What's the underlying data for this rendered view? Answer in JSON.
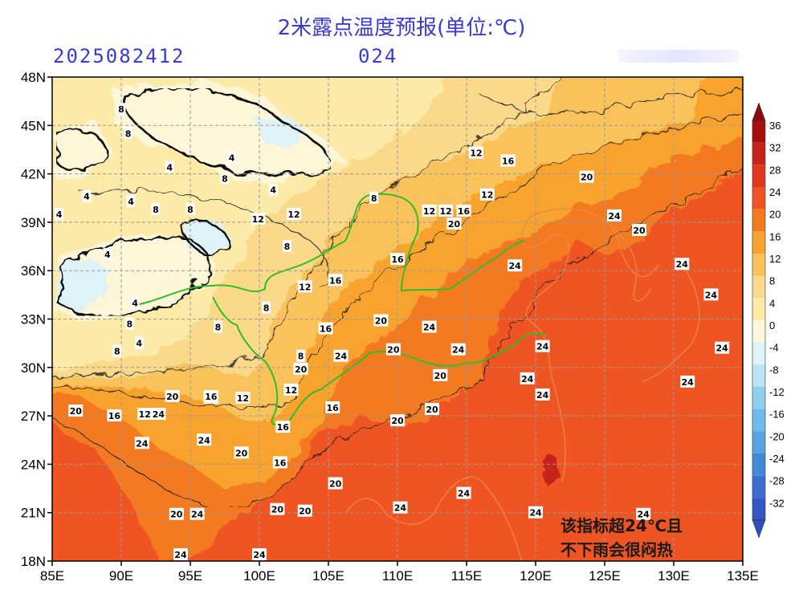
{
  "title": "2米露点温度预报(单位:℃)",
  "init_time": "2025082412",
  "lead_hours": "024",
  "annotation": {
    "line1": "该指标超24℃且",
    "line2": "不下雨会很闷热"
  },
  "x_ticks": [
    "85E",
    "90E",
    "95E",
    "100E",
    "105E",
    "110E",
    "115E",
    "120E",
    "125E",
    "130E",
    "135E"
  ],
  "y_ticks": [
    "48N",
    "45N",
    "42N",
    "39N",
    "36N",
    "33N",
    "30N",
    "27N",
    "24N",
    "21N",
    "18N"
  ],
  "colorbar": {
    "levels": [
      "36",
      "32",
      "28",
      "24",
      "20",
      "16",
      "12",
      "8",
      "4",
      "0",
      "-4",
      "-8",
      "-12",
      "-16",
      "-20",
      "-24",
      "-28",
      "-32"
    ],
    "colors": [
      "#a8100f",
      "#c8231a",
      "#e0381e",
      "#ee5523",
      "#f47a22",
      "#f8a32f",
      "#f9c25a",
      "#fbd98a",
      "#fceaa8",
      "#fdf6d8",
      "#dff2f7",
      "#b8e4f3",
      "#8fd0ee",
      "#6dbbe8",
      "#56a3e1",
      "#4488d8",
      "#3a6fcf",
      "#3358c6"
    ]
  },
  "contour_labels": [
    {
      "text": "8",
      "lon": 90,
      "lat": 46
    },
    {
      "text": "8",
      "lon": 90.5,
      "lat": 44.5
    },
    {
      "text": "4",
      "lon": 98,
      "lat": 43
    },
    {
      "text": "8",
      "lon": 97.5,
      "lat": 41.7
    },
    {
      "text": "4",
      "lon": 101,
      "lat": 41
    },
    {
      "text": "8",
      "lon": 95,
      "lat": 39.8
    },
    {
      "text": "12",
      "lon": 99.9,
      "lat": 39.2
    },
    {
      "text": "12",
      "lon": 102.5,
      "lat": 39.5
    },
    {
      "text": "8",
      "lon": 102,
      "lat": 37.5
    },
    {
      "text": "12",
      "lon": 103.3,
      "lat": 35
    },
    {
      "text": "16",
      "lon": 105.5,
      "lat": 35.4
    },
    {
      "text": "8",
      "lon": 100.5,
      "lat": 33.7
    },
    {
      "text": "16",
      "lon": 104.8,
      "lat": 32.4
    },
    {
      "text": "20",
      "lon": 108.8,
      "lat": 32.9
    },
    {
      "text": "24",
      "lon": 112.3,
      "lat": 32.5
    },
    {
      "text": "20",
      "lon": 109.7,
      "lat": 31.1
    },
    {
      "text": "24",
      "lon": 114.4,
      "lat": 31.1
    },
    {
      "text": "24",
      "lon": 120.5,
      "lat": 31.3
    },
    {
      "text": "24",
      "lon": 105.9,
      "lat": 30.7
    },
    {
      "text": "8",
      "lon": 103,
      "lat": 30.7
    },
    {
      "text": "20",
      "lon": 103,
      "lat": 29.9
    },
    {
      "text": "12",
      "lon": 102.3,
      "lat": 28.6
    },
    {
      "text": "16",
      "lon": 105.3,
      "lat": 27.5
    },
    {
      "text": "20",
      "lon": 113.1,
      "lat": 29.5
    },
    {
      "text": "24",
      "lon": 119.4,
      "lat": 29.3
    },
    {
      "text": "24",
      "lon": 120.5,
      "lat": 28.3
    },
    {
      "text": "20",
      "lon": 110,
      "lat": 26.7
    },
    {
      "text": "20",
      "lon": 112.5,
      "lat": 27.4
    },
    {
      "text": "16",
      "lon": 101.7,
      "lat": 26.3
    },
    {
      "text": "16",
      "lon": 101.5,
      "lat": 24.1
    },
    {
      "text": "20",
      "lon": 98.7,
      "lat": 24.7
    },
    {
      "text": "24",
      "lon": 96,
      "lat": 25.5
    },
    {
      "text": "24",
      "lon": 91.5,
      "lat": 25.3
    },
    {
      "text": "20",
      "lon": 96.5,
      "lat": 28.1
    },
    {
      "text": "16",
      "lon": 96.5,
      "lat": 28.2
    },
    {
      "text": "12",
      "lon": 98.8,
      "lat": 28.1
    },
    {
      "text": "20",
      "lon": 93.7,
      "lat": 28.2
    },
    {
      "text": "20",
      "lon": 86.7,
      "lat": 27.3
    },
    {
      "text": "16",
      "lon": 89.5,
      "lat": 27
    },
    {
      "text": "12",
      "lon": 91.7,
      "lat": 27.1
    },
    {
      "text": "24",
      "lon": 92.7,
      "lat": 27.1
    },
    {
      "text": "20",
      "lon": 105.5,
      "lat": 22.8
    },
    {
      "text": "24",
      "lon": 110.2,
      "lat": 21.3
    },
    {
      "text": "24",
      "lon": 114.8,
      "lat": 22.2
    },
    {
      "text": "20",
      "lon": 101.3,
      "lat": 21.2
    },
    {
      "text": "20",
      "lon": 103.3,
      "lat": 21.1
    },
    {
      "text": "20",
      "lon": 94,
      "lat": 20.9
    },
    {
      "text": "24",
      "lon": 95.5,
      "lat": 20.9
    },
    {
      "text": "24",
      "lon": 94.3,
      "lat": 18.4
    },
    {
      "text": "24",
      "lon": 100,
      "lat": 18.4
    },
    {
      "text": "24",
      "lon": 120,
      "lat": 21
    },
    {
      "text": "24",
      "lon": 127.8,
      "lat": 20.9
    },
    {
      "text": "24",
      "lon": 130.6,
      "lat": 36.4
    },
    {
      "text": "24",
      "lon": 118.5,
      "lat": 36.3
    },
    {
      "text": "24",
      "lon": 132.7,
      "lat": 34.5
    },
    {
      "text": "24",
      "lon": 133.5,
      "lat": 31.2
    },
    {
      "text": "24",
      "lon": 131,
      "lat": 29.1
    },
    {
      "text": "24",
      "lon": 125.7,
      "lat": 39.4
    },
    {
      "text": "20",
      "lon": 127.5,
      "lat": 38.5
    },
    {
      "text": "20",
      "lon": 123.7,
      "lat": 41.8
    },
    {
      "text": "12",
      "lon": 116.5,
      "lat": 40.7
    },
    {
      "text": "16",
      "lon": 118,
      "lat": 42.8
    },
    {
      "text": "12",
      "lon": 115.7,
      "lat": 43.3
    },
    {
      "text": "12",
      "lon": 112.3,
      "lat": 39.7
    },
    {
      "text": "12",
      "lon": 113.5,
      "lat": 39.7
    },
    {
      "text": "16",
      "lon": 114.8,
      "lat": 39.7
    },
    {
      "text": "20",
      "lon": 114.1,
      "lat": 38.9
    },
    {
      "text": "8",
      "lon": 108.3,
      "lat": 40.5
    },
    {
      "text": "16",
      "lon": 110,
      "lat": 36.7
    },
    {
      "text": "4",
      "lon": 93.5,
      "lat": 42.4
    },
    {
      "text": "4",
      "lon": 90.7,
      "lat": 40.3
    },
    {
      "text": "8",
      "lon": 92.5,
      "lat": 39.8
    },
    {
      "text": "4",
      "lon": 89,
      "lat": 37
    },
    {
      "text": "4",
      "lon": 91,
      "lat": 34
    },
    {
      "text": "8",
      "lon": 90.6,
      "lat": 32.7
    },
    {
      "text": "4",
      "lon": 91.3,
      "lat": 31.5
    },
    {
      "text": "8",
      "lon": 89.7,
      "lat": 31
    },
    {
      "text": "8",
      "lon": 97,
      "lat": 32.5
    },
    {
      "text": "4",
      "lon": 87.5,
      "lat": 40.6
    },
    {
      "text": "4",
      "lon": 85.5,
      "lat": 39.5
    }
  ]
}
